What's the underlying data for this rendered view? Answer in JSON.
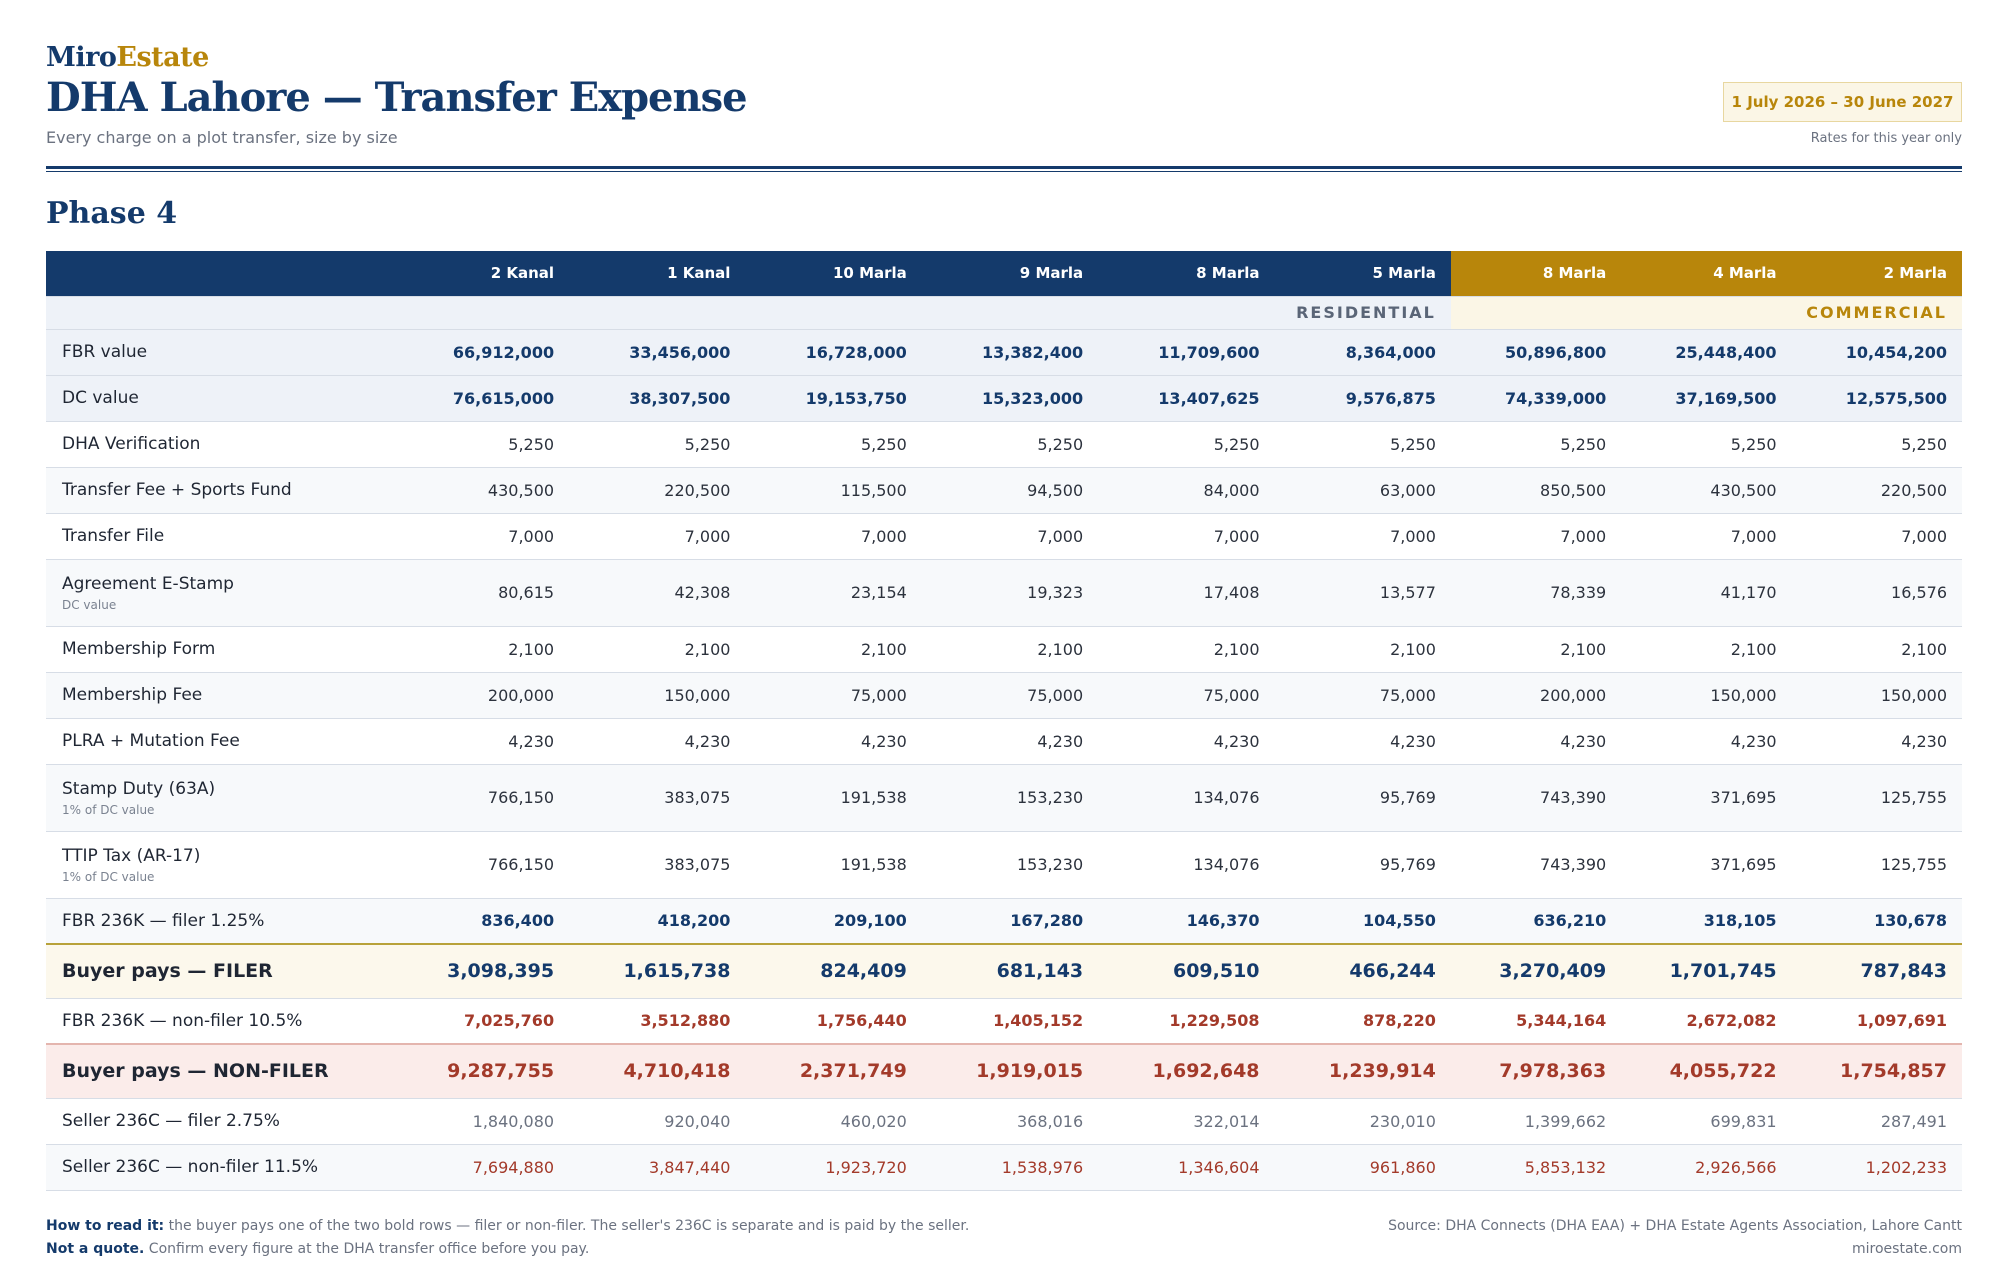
{
  "brand": {
    "part1": "Miro",
    "part2": "Estate"
  },
  "header": {
    "title": "DHA Lahore — Transfer Expense",
    "subtitle": "Every charge on a plot transfer, size by size",
    "date_range": "1 July 2026 – 30 June 2027",
    "date_note": "Rates for this year only"
  },
  "phase": "Phase 4",
  "table": {
    "columns": [
      "2 Kanal",
      "1 Kanal",
      "10 Marla",
      "9 Marla",
      "8 Marla",
      "5 Marla",
      "8 Marla",
      "4 Marla",
      "2 Marla"
    ],
    "groups": {
      "residential": "RESIDENTIAL",
      "commercial": "COMMERCIAL"
    },
    "rows": [
      {
        "label": "FBR value",
        "note": "",
        "values": [
          "66,912,000",
          "33,456,000",
          "16,728,000",
          "13,382,400",
          "11,709,600",
          "8,364,000",
          "50,896,800",
          "25,448,400",
          "10,454,200"
        ]
      },
      {
        "label": "DC value",
        "note": "",
        "values": [
          "76,615,000",
          "38,307,500",
          "19,153,750",
          "15,323,000",
          "13,407,625",
          "9,576,875",
          "74,339,000",
          "37,169,500",
          "12,575,500"
        ]
      },
      {
        "label": "DHA Verification",
        "note": "",
        "values": [
          "5,250",
          "5,250",
          "5,250",
          "5,250",
          "5,250",
          "5,250",
          "5,250",
          "5,250",
          "5,250"
        ]
      },
      {
        "label": "Transfer Fee + Sports Fund",
        "note": "",
        "values": [
          "430,500",
          "220,500",
          "115,500",
          "94,500",
          "84,000",
          "63,000",
          "850,500",
          "430,500",
          "220,500"
        ]
      },
      {
        "label": "Transfer File",
        "note": "",
        "values": [
          "7,000",
          "7,000",
          "7,000",
          "7,000",
          "7,000",
          "7,000",
          "7,000",
          "7,000",
          "7,000"
        ]
      },
      {
        "label": "Agreement E-Stamp",
        "note": "DC value",
        "values": [
          "80,615",
          "42,308",
          "23,154",
          "19,323",
          "17,408",
          "13,577",
          "78,339",
          "41,170",
          "16,576"
        ]
      },
      {
        "label": "Membership Form",
        "note": "",
        "values": [
          "2,100",
          "2,100",
          "2,100",
          "2,100",
          "2,100",
          "2,100",
          "2,100",
          "2,100",
          "2,100"
        ]
      },
      {
        "label": "Membership Fee",
        "note": "",
        "values": [
          "200,000",
          "150,000",
          "75,000",
          "75,000",
          "75,000",
          "75,000",
          "200,000",
          "150,000",
          "150,000"
        ]
      },
      {
        "label": "PLRA + Mutation Fee",
        "note": "",
        "values": [
          "4,230",
          "4,230",
          "4,230",
          "4,230",
          "4,230",
          "4,230",
          "4,230",
          "4,230",
          "4,230"
        ]
      },
      {
        "label": "Stamp Duty (63A)",
        "note": "1% of DC value",
        "values": [
          "766,150",
          "383,075",
          "191,538",
          "153,230",
          "134,076",
          "95,769",
          "743,390",
          "371,695",
          "125,755"
        ]
      },
      {
        "label": "TTIP Tax (AR-17)",
        "note": "1% of DC value",
        "values": [
          "766,150",
          "383,075",
          "191,538",
          "153,230",
          "134,076",
          "95,769",
          "743,390",
          "371,695",
          "125,755"
        ]
      },
      {
        "label": "FBR 236K — filer 1.25%",
        "note": "",
        "values": [
          "836,400",
          "418,200",
          "209,100",
          "167,280",
          "146,370",
          "104,550",
          "636,210",
          "318,105",
          "130,678"
        ]
      },
      {
        "label": "Buyer pays — FILER",
        "note": "",
        "values": [
          "3,098,395",
          "1,615,738",
          "824,409",
          "681,143",
          "609,510",
          "466,244",
          "3,270,409",
          "1,701,745",
          "787,843"
        ]
      },
      {
        "label": "FBR 236K — non-filer 10.5%",
        "note": "",
        "values": [
          "7,025,760",
          "3,512,880",
          "1,756,440",
          "1,405,152",
          "1,229,508",
          "878,220",
          "5,344,164",
          "2,672,082",
          "1,097,691"
        ]
      },
      {
        "label": "Buyer pays — NON-FILER",
        "note": "",
        "values": [
          "9,287,755",
          "4,710,418",
          "2,371,749",
          "1,919,015",
          "1,692,648",
          "1,239,914",
          "7,978,363",
          "4,055,722",
          "1,754,857"
        ]
      },
      {
        "label": "Seller 236C — filer 2.75%",
        "note": "",
        "values": [
          "1,840,080",
          "920,040",
          "460,020",
          "368,016",
          "322,014",
          "230,010",
          "1,399,662",
          "699,831",
          "287,491"
        ]
      },
      {
        "label": "Seller 236C — non-filer 11.5%",
        "note": "",
        "values": [
          "7,694,880",
          "3,847,440",
          "1,923,720",
          "1,538,976",
          "1,346,604",
          "961,860",
          "5,853,132",
          "2,926,566",
          "1,202,233"
        ]
      }
    ]
  },
  "footer": {
    "read_strong": "How to read it:",
    "read_text": " the buyer pays one of the two bold rows — filer or non-filer. The seller's 236C is separate and is paid by the seller.",
    "quote_strong": "Not a quote.",
    "quote_text": " Confirm every figure at the DHA transfer office before you pay.",
    "source": "Source: DHA Connects (DHA EAA) + DHA Estate Agents Association, Lahore Cantt",
    "site": "miroestate.com"
  },
  "colors": {
    "navy": "#143a6b",
    "gold": "#b8860b",
    "red": "#a33a2a"
  }
}
